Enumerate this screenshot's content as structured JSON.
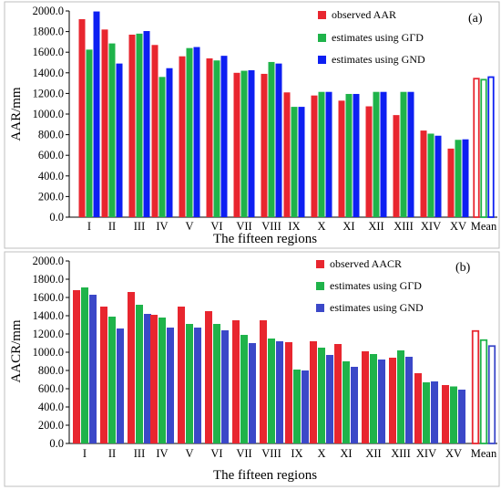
{
  "chart_data": [
    {
      "type": "bar",
      "panel_label": "(a)",
      "ylabel": "AAR/mm",
      "xlabel": "The fifteen regions",
      "ylim": [
        0,
        2000
      ],
      "yticks": [
        "0.0",
        "200.0",
        "400.0",
        "600.0",
        "800.0",
        "1000.0",
        "1200.0",
        "1400.0",
        "1600.0",
        "1800.0",
        "2000.0"
      ],
      "categories": [
        "I",
        "II",
        "III",
        "IV",
        "V",
        "VI",
        "VII",
        "VIII",
        "IX",
        "X",
        "XI",
        "XII",
        "XIII",
        "XIV",
        "XV",
        "Mean"
      ],
      "legend_position": "top-right",
      "series": [
        {
          "name": "observed AAR",
          "color": "#e8262f",
          "values": [
            1920,
            1820,
            1770,
            1670,
            1560,
            1540,
            1400,
            1390,
            1210,
            1180,
            1130,
            1075,
            990,
            840,
            665,
            1350
          ]
        },
        {
          "name": "estimates using GΓD",
          "color": "#1fb34a",
          "values": [
            1625,
            1685,
            1780,
            1360,
            1640,
            1520,
            1420,
            1505,
            1070,
            1215,
            1195,
            1215,
            1215,
            810,
            750,
            1340
          ]
        },
        {
          "name": "estimates using GND",
          "color": "#0d1ff2",
          "values": [
            1995,
            1490,
            1805,
            1445,
            1650,
            1565,
            1425,
            1490,
            1070,
            1215,
            1195,
            1215,
            1215,
            790,
            755,
            1365
          ]
        }
      ]
    },
    {
      "type": "bar",
      "panel_label": "(b)",
      "ylabel": "AACR/mm",
      "xlabel": "The fifteen regions",
      "ylim": [
        0,
        2000
      ],
      "yticks": [
        "0.0",
        "200.0",
        "400.0",
        "600.0",
        "800.0",
        "1000.0",
        "1200.0",
        "1400.0",
        "1600.0",
        "1800.0",
        "2000.0"
      ],
      "categories": [
        "I",
        "II",
        "III",
        "IV",
        "V",
        "VI",
        "VII",
        "VIII",
        "IX",
        "X",
        "XI",
        "XII",
        "XIII",
        "XIV",
        "XV",
        "Mean"
      ],
      "legend_position": "top-right",
      "series": [
        {
          "name": "observed AACR",
          "color": "#e8262f",
          "values": [
            1680,
            1500,
            1660,
            1410,
            1500,
            1450,
            1350,
            1350,
            1110,
            1120,
            1090,
            1010,
            940,
            770,
            640,
            1240
          ]
        },
        {
          "name": "estimates using GΓD",
          "color": "#1fb34a",
          "values": [
            1710,
            1390,
            1520,
            1380,
            1310,
            1310,
            1190,
            1150,
            810,
            1050,
            900,
            980,
            1020,
            670,
            625,
            1140
          ]
        },
        {
          "name": "estimates using GND",
          "color": "#3b48c8",
          "values": [
            1630,
            1260,
            1420,
            1270,
            1270,
            1240,
            1100,
            1120,
            800,
            970,
            840,
            920,
            950,
            680,
            590,
            1075
          ]
        }
      ]
    }
  ]
}
